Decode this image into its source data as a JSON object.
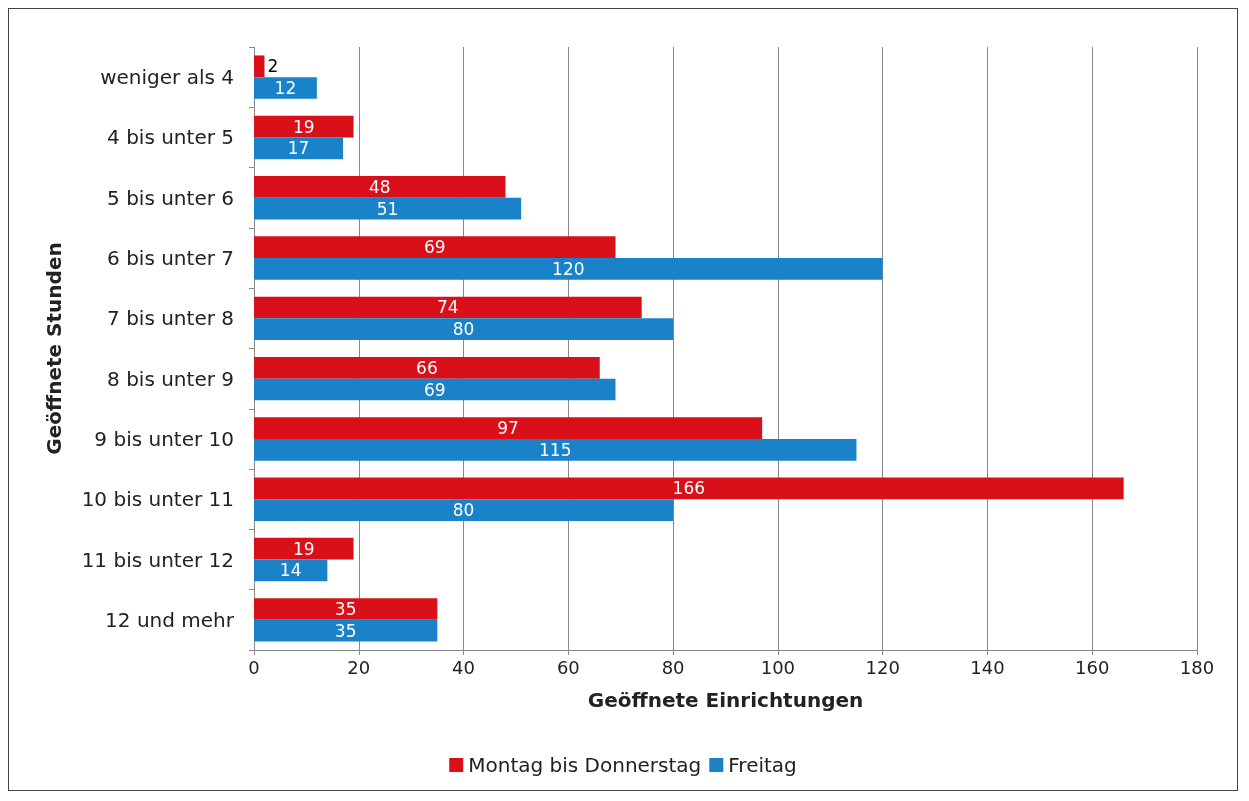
{
  "chart_data": {
    "type": "bar",
    "orientation": "horizontal",
    "xlabel": "Geöffnete Einrichtungen",
    "ylabel": "Geöffnete Stunden",
    "categories": [
      "weniger als 4",
      "4 bis unter 5",
      "5 bis unter 6",
      "6 bis unter 7",
      "7 bis unter 8",
      "8 bis unter 9",
      "9 bis unter 10",
      "10 bis unter 11",
      "11 bis unter 12",
      "12 und mehr"
    ],
    "series": [
      {
        "name": "Montag bis Donnerstag",
        "color": "#d9101a",
        "values": [
          2,
          19,
          48,
          69,
          74,
          66,
          97,
          166,
          19,
          35
        ]
      },
      {
        "name": "Freitag",
        "color": "#1a82c8",
        "values": [
          12,
          17,
          51,
          120,
          80,
          69,
          115,
          80,
          14,
          35
        ]
      }
    ],
    "xlim": [
      0,
      180
    ],
    "xticks": [
      0,
      20,
      40,
      60,
      80,
      100,
      120,
      140,
      160,
      180
    ],
    "grid": "x",
    "legend": "bottom",
    "data_labels": true
  }
}
